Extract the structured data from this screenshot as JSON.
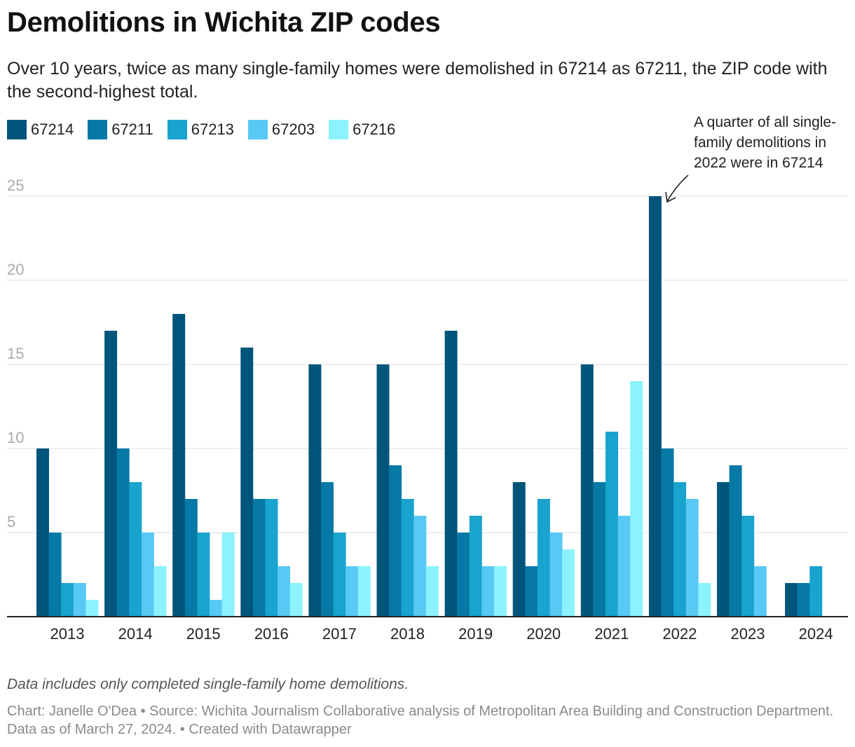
{
  "title": "Demolitions in Wichita ZIP codes",
  "subtitle": "Over 10 years, twice as many single-family homes were demolished in 67214 as 67211, the ZIP code with the second-highest total.",
  "notes": "Data includes only completed single-family home demolitions.",
  "credits": "Chart: Janelle O'Dea • Source: Wichita Journalism Collaborative analysis of Metropolitan Area Building and Construction Department. Data as of March 27, 2024. • Created with Datawrapper",
  "annotation": {
    "lines": [
      "A quarter of all single-",
      "family demolitions in",
      "2022 were in 67214"
    ]
  },
  "chart_data": {
    "type": "bar",
    "categories": [
      "2013",
      "2014",
      "2015",
      "2016",
      "2017",
      "2018",
      "2019",
      "2020",
      "2021",
      "2022",
      "2023",
      "2024"
    ],
    "series": [
      {
        "name": "67214",
        "color": "#02557a",
        "values": [
          10,
          17,
          18,
          16,
          15,
          15,
          17,
          8,
          15,
          25,
          8,
          2
        ]
      },
      {
        "name": "67211",
        "color": "#0679a6",
        "values": [
          5,
          10,
          7,
          7,
          8,
          9,
          5,
          3,
          8,
          10,
          9,
          2
        ]
      },
      {
        "name": "67213",
        "color": "#19a3cf",
        "values": [
          2,
          8,
          5,
          7,
          5,
          7,
          6,
          7,
          11,
          8,
          6,
          3
        ]
      },
      {
        "name": "67203",
        "color": "#58c9f4",
        "values": [
          2,
          5,
          1,
          3,
          3,
          6,
          3,
          5,
          6,
          7,
          3,
          0
        ]
      },
      {
        "name": "67216",
        "color": "#8cf2fd",
        "values": [
          1,
          3,
          5,
          2,
          3,
          3,
          3,
          4,
          14,
          2,
          0,
          0
        ]
      }
    ],
    "yticks": [
      5,
      10,
      15,
      20,
      25
    ],
    "ylim": [
      0,
      25
    ],
    "grid": true,
    "legend": "top-left"
  }
}
